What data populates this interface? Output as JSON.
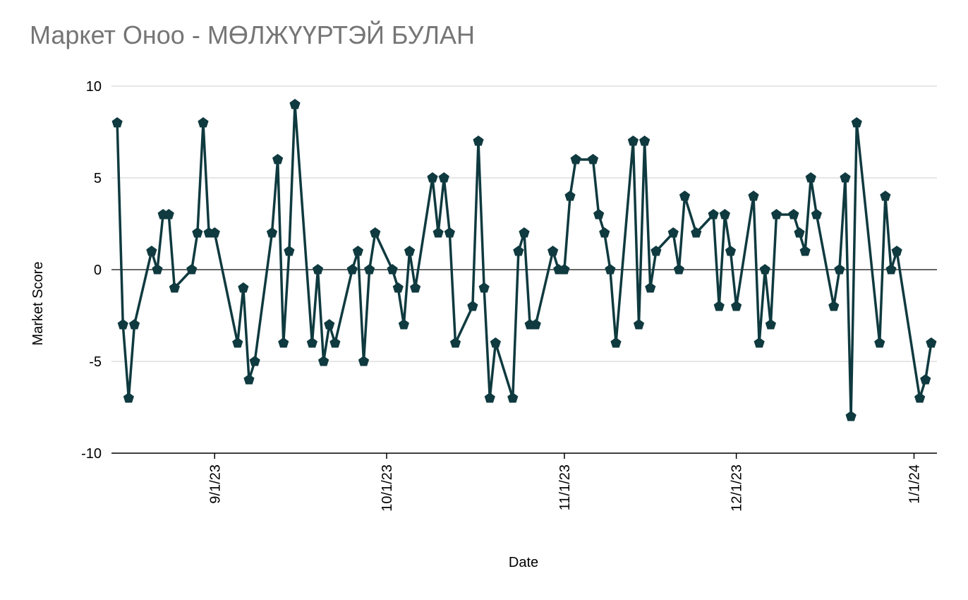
{
  "chart_data": {
    "type": "line",
    "title": "Маркет Оноо - МӨЛЖҮҮРТЭЙ БУЛАН",
    "x_label": "Date",
    "y_label": "Market Score",
    "x": [
      "8/15/23",
      "8/16/23",
      "8/17/23",
      "8/18/23",
      "8/21/23",
      "8/22/23",
      "8/23/23",
      "8/24/23",
      "8/25/23",
      "8/28/23",
      "8/29/23",
      "8/30/23",
      "8/31/23",
      "9/1/23",
      "9/5/23",
      "9/6/23",
      "9/7/23",
      "9/8/23",
      "9/11/23",
      "9/12/23",
      "9/13/23",
      "9/14/23",
      "9/15/23",
      "9/18/23",
      "9/19/23",
      "9/20/23",
      "9/21/23",
      "9/22/23",
      "9/25/23",
      "9/26/23",
      "9/27/23",
      "9/28/23",
      "9/29/23",
      "10/2/23",
      "10/3/23",
      "10/4/23",
      "10/5/23",
      "10/6/23",
      "10/9/23",
      "10/10/23",
      "10/11/23",
      "10/12/23",
      "10/13/23",
      "10/16/23",
      "10/17/23",
      "10/18/23",
      "10/19/23",
      "10/20/23",
      "10/23/23",
      "10/24/23",
      "10/25/23",
      "10/26/23",
      "10/27/23",
      "10/30/23",
      "10/31/23",
      "11/1/23",
      "11/2/23",
      "11/3/23",
      "11/6/23",
      "11/7/23",
      "11/8/23",
      "11/9/23",
      "11/10/23",
      "11/13/23",
      "11/14/23",
      "11/15/23",
      "11/16/23",
      "11/17/23",
      "11/20/23",
      "11/21/23",
      "11/22/23",
      "11/24/23",
      "11/27/23",
      "11/28/23",
      "11/29/23",
      "11/30/23",
      "12/1/23",
      "12/4/23",
      "12/5/23",
      "12/6/23",
      "12/7/23",
      "12/8/23",
      "12/11/23",
      "12/12/23",
      "12/13/23",
      "12/14/23",
      "12/15/23",
      "12/18/23",
      "12/19/23",
      "12/20/23",
      "12/21/23",
      "12/22/23",
      "12/26/23",
      "12/27/23",
      "12/28/23",
      "12/29/23",
      "1/2/24",
      "1/3/24",
      "1/4/24"
    ],
    "series": [
      {
        "name": "Market Score",
        "color": "#0f3a3f",
        "values": [
          8,
          -3,
          -7,
          -3,
          1,
          0,
          3,
          3,
          -1,
          0,
          2,
          8,
          2,
          2,
          -4,
          -1,
          -6,
          -5,
          2,
          6,
          -4,
          1,
          9,
          -4,
          0,
          -5,
          -3,
          -4,
          0,
          1,
          -5,
          0,
          2,
          0,
          -1,
          -3,
          1,
          -1,
          5,
          2,
          5,
          2,
          -4,
          -2,
          7,
          -1,
          -7,
          -4,
          -7,
          1,
          2,
          -3,
          -3,
          1,
          0,
          0,
          4,
          6,
          6,
          3,
          2,
          0,
          -4,
          7,
          -3,
          7,
          -1,
          1,
          2,
          0,
          4,
          2,
          3,
          -2,
          3,
          1,
          -2,
          4,
          -4,
          0,
          -3,
          3,
          3,
          2,
          1,
          5,
          3,
          -2,
          0,
          5,
          -8,
          8,
          -4,
          4,
          0,
          1,
          -7,
          -6,
          -4
        ]
      }
    ],
    "xlim": [
      "8/14/23",
      "1/5/24"
    ],
    "xticks": [
      "9/1/23",
      "10/1/23",
      "11/1/23",
      "12/1/23",
      "1/1/24"
    ],
    "ylim": [
      -10,
      10
    ],
    "yticks": [
      10,
      5,
      0,
      -5,
      -10
    ],
    "grid": true
  }
}
